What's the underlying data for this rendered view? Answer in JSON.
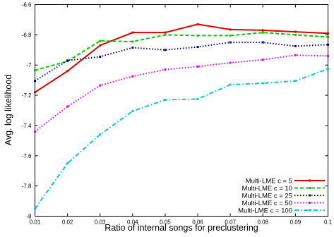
{
  "chart_data": {
    "type": "line",
    "title": "",
    "xlabel": "Ratio of internal songs for preclustering",
    "ylabel": "Avg. log likelihood",
    "x": [
      0.01,
      0.02,
      0.03,
      0.04,
      0.05,
      0.06,
      0.07,
      0.08,
      0.09,
      0.1
    ],
    "x_tick_labels": [
      "0.01",
      "0.02",
      "0.03",
      "0.04",
      "0.05",
      "0.06",
      "0.07",
      "0.08",
      "0.09",
      "0.1"
    ],
    "xlim": [
      0.01,
      0.1
    ],
    "y_ticks": [
      -8,
      -7.8,
      -7.6,
      -7.4,
      -7.2,
      -7,
      -6.8,
      -6.6
    ],
    "y_tick_labels": [
      "-8",
      "-7.8",
      "-7.6",
      "-7.4",
      "-7.2",
      "-7",
      "-6.8",
      "-6.6"
    ],
    "ylim": [
      -8,
      -6.6
    ],
    "grid": false,
    "legend_position": "bottom-right",
    "series": [
      {
        "name": "Multi-LME c = 5",
        "color": "#dd0000",
        "dash": "solid",
        "marker": "square",
        "values": [
          -7.18,
          -7.04,
          -6.87,
          -6.785,
          -6.785,
          -6.73,
          -6.765,
          -6.77,
          -6.78,
          -6.79
        ]
      },
      {
        "name": "Multi-LME c = 10",
        "color": "#00cc00",
        "dash": "dashed",
        "marker": "square",
        "values": [
          -7.035,
          -6.975,
          -6.84,
          -6.845,
          -6.8,
          -6.805,
          -6.805,
          -6.785,
          -6.8,
          -6.815
        ]
      },
      {
        "name": "Multi-LME c = 25",
        "color": "#000099",
        "dash": "dotted",
        "marker": "square",
        "values": [
          -7.105,
          -6.97,
          -6.945,
          -6.885,
          -6.9,
          -6.88,
          -6.85,
          -6.85,
          -6.875,
          -6.865
        ]
      },
      {
        "name": "Multi-LME c = 50",
        "color": "#ee00ee",
        "dash": "dotted",
        "marker": "square",
        "values": [
          -7.44,
          -7.275,
          -7.135,
          -7.075,
          -7.03,
          -7.01,
          -6.985,
          -6.965,
          -6.935,
          -6.94
        ]
      },
      {
        "name": "Multi-LME c = 100",
        "color": "#00cccc",
        "dash": "dashdot",
        "marker": "square",
        "values": [
          -7.95,
          -7.65,
          -7.46,
          -7.305,
          -7.23,
          -7.225,
          -7.13,
          -7.12,
          -7.105,
          -7.025
        ]
      }
    ]
  }
}
